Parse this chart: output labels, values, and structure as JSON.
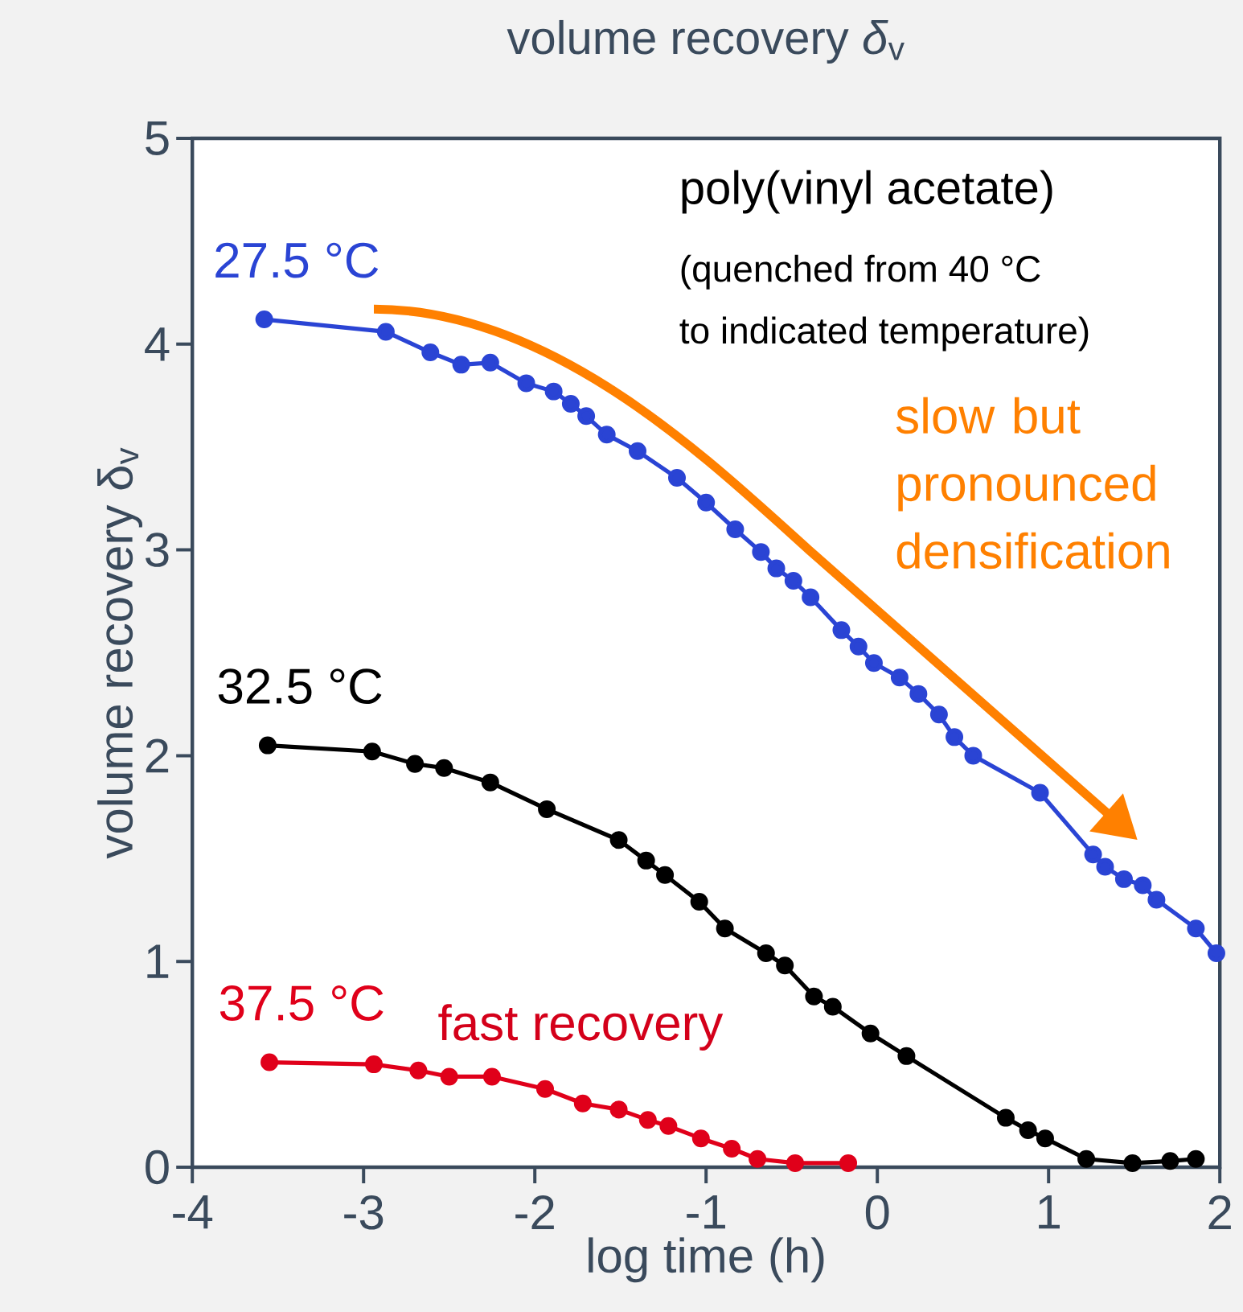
{
  "chart_data": {
    "type": "line",
    "title": "volume recovery *δ*$_{v}$",
    "xlabel": "log time (h)",
    "ylabel": "volume recovery δ$_{v}$",
    "xlim": [
      -4,
      2
    ],
    "ylim": [
      0,
      5
    ],
    "xticks": [
      -4,
      -3,
      -2,
      -1,
      0,
      1,
      2
    ],
    "yticks": [
      0,
      1,
      2,
      3,
      4,
      5
    ],
    "marker": "circle",
    "grid": false,
    "series": [
      {
        "name": "27.5 °C",
        "color": "#2a44d4",
        "x": [
          -3.58,
          -2.87,
          -2.61,
          -2.43,
          -2.26,
          -2.05,
          -1.89,
          -1.79,
          -1.7,
          -1.58,
          -1.4,
          -1.17,
          -1.0,
          -0.83,
          -0.68,
          -0.59,
          -0.49,
          -0.39,
          -0.21,
          -0.11,
          -0.02,
          0.13,
          0.24,
          0.36,
          0.45,
          0.56,
          0.95,
          1.26,
          1.33,
          1.44,
          1.55,
          1.63,
          1.86,
          1.98
        ],
        "values": [
          4.12,
          4.06,
          3.96,
          3.9,
          3.91,
          3.81,
          3.77,
          3.71,
          3.65,
          3.56,
          3.48,
          3.35,
          3.23,
          3.1,
          2.99,
          2.91,
          2.85,
          2.77,
          2.61,
          2.53,
          2.45,
          2.38,
          2.3,
          2.2,
          2.09,
          2.0,
          1.82,
          1.52,
          1.46,
          1.4,
          1.37,
          1.3,
          1.16,
          1.04
        ]
      },
      {
        "name": "32.5 °C",
        "color": "#000000",
        "x": [
          -3.56,
          -2.95,
          -2.7,
          -2.53,
          -2.26,
          -1.93,
          -1.51,
          -1.35,
          -1.24,
          -1.04,
          -0.89,
          -0.65,
          -0.54,
          -0.37,
          -0.26,
          -0.04,
          0.17,
          0.75,
          0.88,
          0.98,
          1.22,
          1.49,
          1.71,
          1.86
        ],
        "values": [
          2.05,
          2.02,
          1.96,
          1.94,
          1.87,
          1.74,
          1.59,
          1.49,
          1.42,
          1.29,
          1.16,
          1.04,
          0.98,
          0.83,
          0.78,
          0.65,
          0.54,
          0.24,
          0.18,
          0.14,
          0.04,
          0.02,
          0.03,
          0.04
        ]
      },
      {
        "name": "37.5 °C",
        "color": "#e0001a",
        "x": [
          -3.55,
          -2.94,
          -2.68,
          -2.5,
          -2.25,
          -1.94,
          -1.72,
          -1.51,
          -1.34,
          -1.22,
          -1.03,
          -0.85,
          -0.7,
          -0.48,
          -0.17
        ],
        "values": [
          0.51,
          0.5,
          0.47,
          0.44,
          0.44,
          0.38,
          0.31,
          0.28,
          0.23,
          0.2,
          0.14,
          0.09,
          0.04,
          0.02,
          0.02
        ]
      }
    ],
    "annotations": [
      "poly(vinyl acetate)",
      "(quenched from 40 °C",
      "to indicated temperature)",
      "slow but pronounced densification",
      "fast recovery"
    ]
  }
}
